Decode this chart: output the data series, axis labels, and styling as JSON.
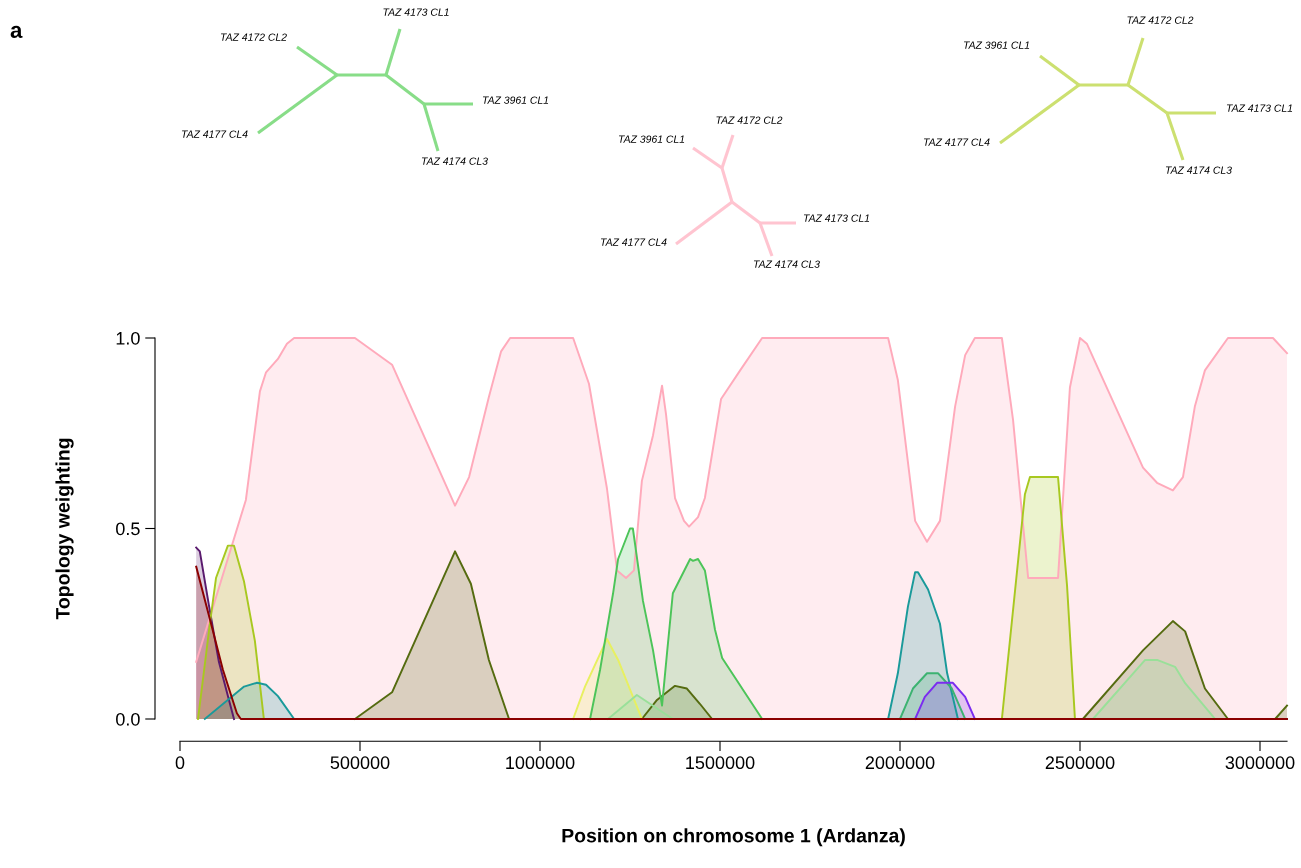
{
  "chart_data": {
    "type": "area",
    "xlabel": "Position on chromosome 1 (Ardanza)",
    "ylabel": "Topology weighting",
    "xlim": [
      0,
      3075000
    ],
    "ylim": [
      0,
      1
    ],
    "xticks": [
      0,
      500000,
      1000000,
      1500000,
      2000000,
      2500000,
      3000000
    ],
    "yticks": [
      {
        "value": 0,
        "label": "0.0"
      },
      {
        "value": 0.5,
        "label": "0.5"
      },
      {
        "value": 1,
        "label": "1.0"
      }
    ],
    "grid": false,
    "legend": false,
    "annotations": [
      "a",
      "TAZ 4172 CL2",
      "TAZ 4173 CL1",
      "TAZ 4177 CL4",
      "TAZ 3961 CL1",
      "TAZ 4174 CL3",
      "TAZ 3961 CL1",
      "TAZ 4172 CL2",
      "TAZ 4177 CL4",
      "TAZ 4173 CL1",
      "TAZ 4174 CL3",
      "TAZ 3961 CL1",
      "TAZ 4172 CL2",
      "TAZ 4177 CL4",
      "TAZ 4173 CL1",
      "TAZ 4174 CL3"
    ],
    "series": [
      {
        "color": "#ffaabb",
        "x": [
          45000,
          183000,
          222000,
          239000,
          272000,
          297000,
          317000,
          486000,
          589000,
          764000,
          803000,
          858000,
          892000,
          917000,
          1092000,
          1136000,
          1186000,
          1214000,
          1239000,
          1261000,
          1283000,
          1314000,
          1339000,
          1350000,
          1375000,
          1400000,
          1414000,
          1439000,
          1458000,
          1503000,
          1556000,
          1617000,
          1967000,
          1994000,
          2042000,
          2075000,
          2111000,
          2153000,
          2181000,
          2208000,
          2283000,
          2314000,
          2356000,
          2439000,
          2472000,
          2500000,
          2519000,
          2675000,
          2714000,
          2758000,
          2786000,
          2819000,
          2847000,
          2911000,
          3036000,
          3075000
        ],
        "values": [
          0.15,
          0.575,
          0.86,
          0.91,
          0.945,
          0.985,
          1.0,
          1.0,
          0.93,
          0.56,
          0.635,
          0.845,
          0.965,
          1.0,
          1.0,
          0.88,
          0.605,
          0.39,
          0.37,
          0.39,
          0.625,
          0.745,
          0.875,
          0.8,
          0.58,
          0.52,
          0.505,
          0.53,
          0.58,
          0.84,
          0.915,
          1.0,
          1.0,
          0.89,
          0.52,
          0.465,
          0.52,
          0.82,
          0.955,
          1.0,
          1.0,
          0.785,
          0.37,
          0.37,
          0.87,
          1.0,
          0.985,
          0.66,
          0.62,
          0.6,
          0.635,
          0.82,
          0.915,
          1.0,
          1.0,
          0.96
        ]
      },
      {
        "color": "#5a1a6e",
        "x": [
          45000,
          55000,
          80000,
          108000,
          150000
        ],
        "values": [
          0.45,
          0.44,
          0.3,
          0.15,
          0
        ]
      },
      {
        "color": "#a8c820",
        "x": [
          50000,
          83000,
          100000,
          133000,
          150000,
          178000,
          208000,
          233000,
          2283000,
          2347000,
          2361000,
          2439000,
          2464000,
          2486000
        ],
        "values": [
          0,
          0.25,
          0.37,
          0.455,
          0.455,
          0.36,
          0.205,
          0,
          0,
          0.59,
          0.635,
          0.635,
          0.35,
          0
        ]
      },
      {
        "color": "#1a9a9a",
        "x": [
          69000,
          178000,
          214000,
          239000,
          272000,
          317000,
          1967000,
          1994000,
          2022000,
          2042000,
          2050000,
          2078000,
          2111000,
          2131000,
          2161000
        ],
        "values": [
          0,
          0.085,
          0.095,
          0.09,
          0.06,
          0,
          0,
          0.12,
          0.295,
          0.385,
          0.385,
          0.34,
          0.25,
          0.12,
          0
        ]
      },
      {
        "color": "#556b10",
        "x": [
          486000,
          589000,
          764000,
          808000,
          858000,
          914000,
          1283000,
          1325000,
          1375000,
          1408000,
          1444000,
          1478000,
          2508000,
          2675000,
          2758000,
          2792000,
          2847000,
          2911000,
          3042000,
          3075000
        ],
        "values": [
          0,
          0.07,
          0.44,
          0.355,
          0.155,
          0,
          0,
          0.05,
          0.087,
          0.08,
          0.04,
          0,
          0,
          0.18,
          0.257,
          0.23,
          0.08,
          0,
          0,
          0.035
        ]
      },
      {
        "color": "#e8f060",
        "x": [
          1092000,
          1125000,
          1186000,
          1217000,
          1283000
        ],
        "values": [
          0,
          0.085,
          0.21,
          0.155,
          0
        ]
      },
      {
        "color": "#4cc459",
        "x": [
          1139000,
          1167000,
          1203000,
          1217000,
          1250000,
          1258000,
          1286000,
          1314000,
          1339000,
          1353000,
          1369000,
          1417000,
          1425000,
          1439000,
          1458000,
          1486000,
          1506000,
          1617000
        ],
        "values": [
          0,
          0.13,
          0.33,
          0.42,
          0.5,
          0.5,
          0.31,
          0.18,
          0.035,
          0.175,
          0.33,
          0.42,
          0.415,
          0.42,
          0.39,
          0.235,
          0.16,
          0
        ]
      },
      {
        "color": "#99e099",
        "x": [
          1189000,
          1269000,
          1369000,
          2536000,
          2681000,
          2714000,
          2764000,
          2792000,
          2875000
        ],
        "values": [
          0,
          0.063,
          0,
          0,
          0.155,
          0.155,
          0.137,
          0.094,
          0
        ]
      },
      {
        "color": "#3cb371",
        "x": [
          2000000,
          2036000,
          2075000,
          2106000,
          2144000,
          2181000
        ],
        "values": [
          0,
          0.08,
          0.12,
          0.12,
          0.08,
          0
        ]
      },
      {
        "color": "#7b2cf0",
        "x": [
          2042000,
          2069000,
          2103000,
          2147000,
          2181000,
          2208000
        ],
        "values": [
          0,
          0.058,
          0.095,
          0.095,
          0.058,
          0
        ]
      },
      {
        "color": "#8b0000",
        "x": [
          45000,
          89000,
          119000,
          158000,
          169000,
          3075000
        ],
        "values": [
          0.4,
          0.24,
          0.13,
          0.015,
          0,
          0
        ]
      }
    ]
  }
}
